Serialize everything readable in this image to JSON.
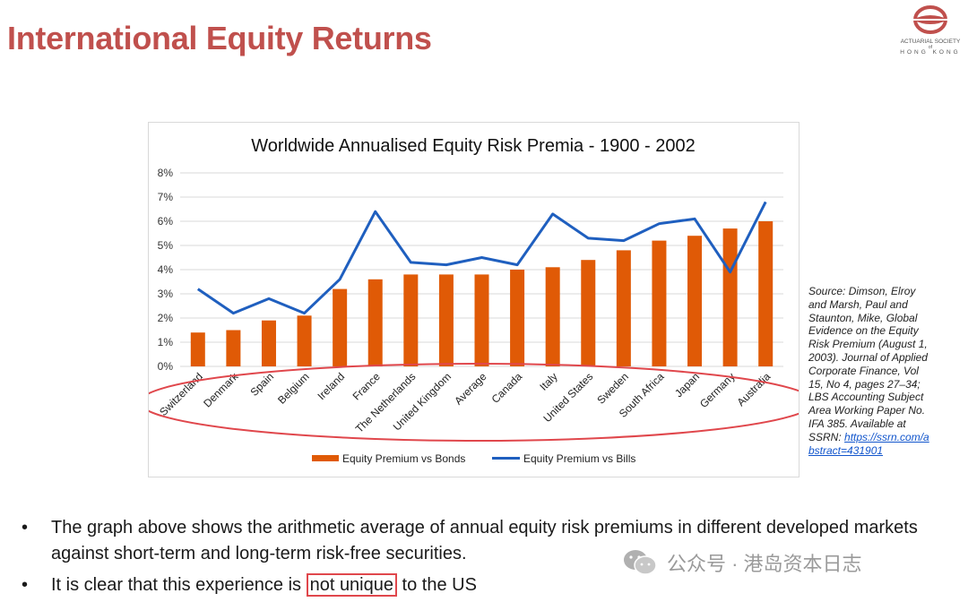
{
  "slide": {
    "title": "International Equity Returns",
    "logo_text": "ACTUARIAL SOCIETY OF HONG KONG",
    "logo_text_top": "ACTUARIAL SOCIETY",
    "logo_text_of": "of",
    "logo_text_bottom": "HONG KONG",
    "brand_color": "#c0504d"
  },
  "source_note": {
    "text": "Source: Dimson, Elroy and Marsh, Paul and Staunton, Mike, Global Evidence on the Equity Risk Premium (August 1, 2003). Journal of Applied Corporate Finance, Vol 15, No 4, pages 27–34; LBS Accounting Subject Area Working Paper No. IFA 385. Available at SSRN:",
    "link": "https://ssrn.com/abstract=431901"
  },
  "bullets": [
    {
      "text": "The graph above shows the arithmetic average of annual equity risk premiums in different developed markets against short-term and long-term risk-free securities."
    },
    {
      "before": "It is clear that this experience is ",
      "highlight": "not unique",
      "after": " to the US"
    }
  ],
  "watermark": {
    "text": "公众号 · 港岛资本日志",
    "icon": "wechat-icon"
  },
  "chart_data": {
    "type": "bar",
    "title": "Worldwide Annualised Equity Risk Premia - 1900 - 2002",
    "categories": [
      "Switzerland",
      "Denmark",
      "Spain",
      "Belgium",
      "Ireland",
      "France",
      "The Netherlands",
      "United Kingdom",
      "Average",
      "Canada",
      "Italy",
      "United States",
      "Sweden",
      "South Africa",
      "Japan",
      "Germany",
      "Australia"
    ],
    "series": [
      {
        "name": "Equity Premium vs Bonds",
        "type": "bar",
        "color": "#e05a06",
        "values": [
          1.4,
          1.5,
          1.9,
          2.1,
          3.2,
          3.6,
          3.8,
          3.8,
          3.8,
          4.0,
          4.1,
          4.4,
          4.8,
          5.2,
          5.4,
          5.7,
          6.0
        ]
      },
      {
        "name": "Equity Premium vs Bills",
        "type": "line",
        "color": "#1f5fbf",
        "values": [
          3.2,
          2.2,
          2.8,
          2.2,
          3.6,
          6.4,
          4.3,
          4.2,
          4.5,
          4.2,
          6.3,
          5.3,
          5.2,
          5.9,
          6.1,
          3.9,
          6.8
        ]
      }
    ],
    "ylim": [
      0,
      8
    ],
    "yticks": [
      "0%",
      "1%",
      "2%",
      "3%",
      "4%",
      "5%",
      "6%",
      "7%",
      "8%"
    ],
    "grid": true,
    "legend": "bottom",
    "annotation": "red ellipse around x-axis category labels"
  }
}
